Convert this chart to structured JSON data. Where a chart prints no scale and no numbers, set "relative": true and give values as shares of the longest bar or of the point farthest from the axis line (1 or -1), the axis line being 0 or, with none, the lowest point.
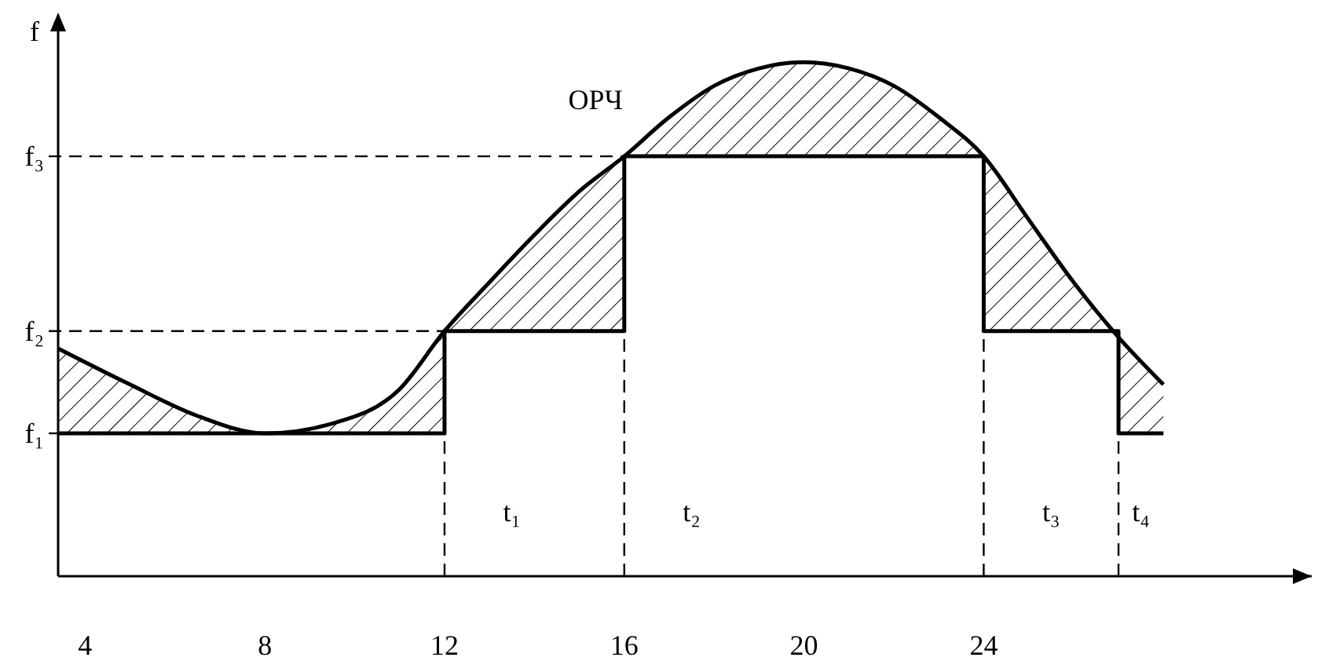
{
  "chart_data": {
    "type": "line",
    "ylabel": "f",
    "xlim": [
      3.4,
      31.3
    ],
    "xticks": [
      4,
      8,
      12,
      16,
      20,
      24
    ],
    "relative": true,
    "grid": false,
    "series": [
      {
        "name": "ОРЧ",
        "color": "#000000",
        "x": [
          3.4,
          5,
          6.5,
          8,
          9.5,
          11,
          12,
          13,
          14,
          15,
          16,
          17,
          18,
          19,
          20,
          21,
          22,
          23,
          24,
          25,
          26,
          27,
          28
        ],
        "values": [
          0.443,
          0.373,
          0.312,
          0.278,
          0.297,
          0.364,
          0.477,
          0.572,
          0.664,
          0.749,
          0.817,
          0.893,
          0.954,
          0.988,
          1.0,
          0.988,
          0.954,
          0.893,
          0.817,
          0.694,
          0.572,
          0.465,
          0.373
        ],
        "lower": [
          0.278,
          0.278,
          0.278,
          0.278,
          0.278,
          0.278,
          0.477,
          0.477,
          0.477,
          0.477,
          0.817,
          0.817,
          0.817,
          0.817,
          0.817,
          0.817,
          0.817,
          0.817,
          0.477,
          0.477,
          0.477,
          0.278,
          0.278
        ],
        "upper": [
          0.443,
          0.373,
          0.312,
          0.278,
          0.297,
          0.364,
          0.477,
          0.572,
          0.664,
          0.749,
          0.817,
          0.893,
          0.954,
          0.988,
          1.0,
          0.988,
          0.954,
          0.893,
          0.817,
          0.694,
          0.572,
          0.465,
          0.373
        ]
      },
      {
        "type": "step",
        "color": "#000000",
        "x": [
          3.4,
          12,
          16,
          24,
          27,
          28
        ],
        "values": [
          0.278,
          0.477,
          0.817,
          0.477,
          0.278,
          0.278
        ]
      }
    ],
    "ref_lines": [
      {
        "axis": "y",
        "value": 0.278,
        "label": "f₁",
        "line_style": "dashed"
      },
      {
        "axis": "y",
        "value": 0.477,
        "label": "f₂",
        "line_style": "dashed"
      },
      {
        "axis": "y",
        "value": 0.817,
        "label": "f₃",
        "line_style": "dashed"
      },
      {
        "axis": "x",
        "value": 12,
        "line_style": "dashed"
      },
      {
        "axis": "x",
        "value": 16,
        "line_style": "dashed"
      },
      {
        "axis": "x",
        "value": 24,
        "line_style": "dashed"
      },
      {
        "axis": "x",
        "value": 27,
        "line_style": "dashed"
      }
    ],
    "annotations": [
      "t₁",
      "t₂",
      "t₃",
      "t₄"
    ]
  }
}
